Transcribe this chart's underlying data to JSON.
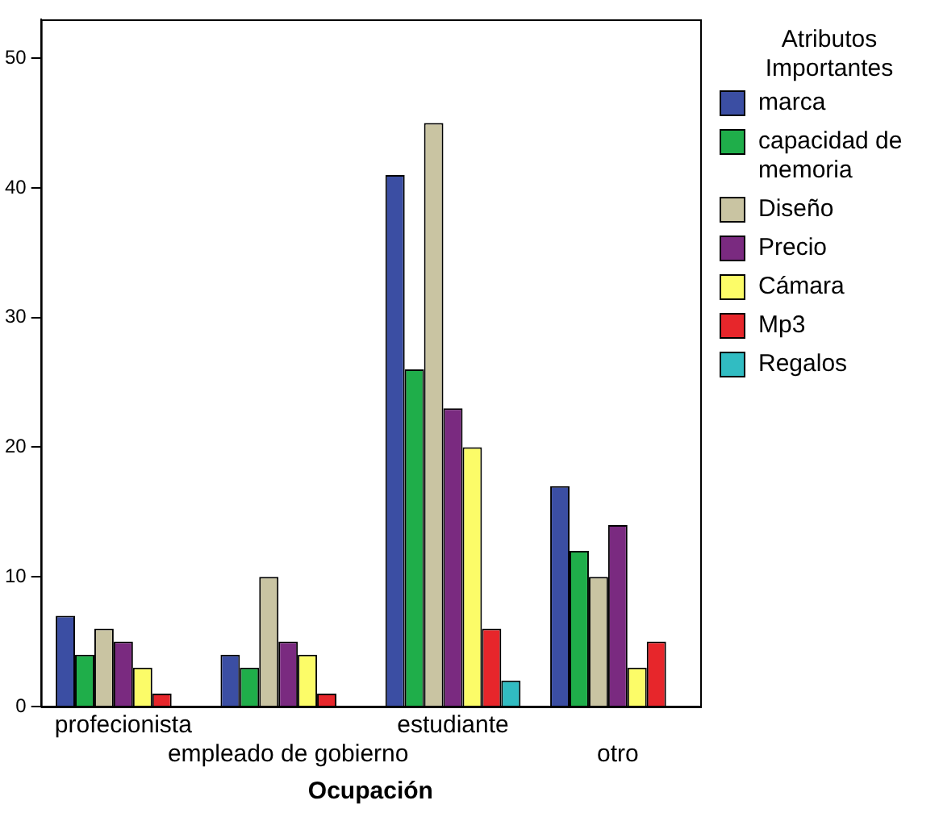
{
  "chart_data": {
    "type": "bar",
    "xlabel": "Ocupación",
    "legend_title": "Atributos Importantes",
    "legend": "right",
    "grid": false,
    "categories": [
      "profecionista",
      "empleado de gobierno",
      "estudiante",
      "otro"
    ],
    "ylim": [
      0,
      53
    ],
    "yticks": [
      0,
      10,
      20,
      30,
      40,
      50
    ],
    "series": [
      {
        "name": "marca",
        "color": "#3b4ea3",
        "values": [
          7,
          4,
          41,
          17
        ]
      },
      {
        "name": "capacidad de memoria",
        "color": "#1fae4a",
        "values": [
          4,
          3,
          26,
          12
        ]
      },
      {
        "name": "Diseño",
        "color": "#c9c4a2",
        "values": [
          6,
          10,
          45,
          10
        ]
      },
      {
        "name": "Precio",
        "color": "#7a2a80",
        "values": [
          5,
          5,
          23,
          14
        ]
      },
      {
        "name": "Cámara",
        "color": "#fcfc68",
        "values": [
          3,
          4,
          20,
          3
        ]
      },
      {
        "name": "Mp3",
        "color": "#e7262b",
        "values": [
          1,
          1,
          6,
          5
        ]
      },
      {
        "name": "Regalos",
        "color": "#31bcc2",
        "values": [
          null,
          null,
          2,
          null
        ]
      }
    ]
  }
}
